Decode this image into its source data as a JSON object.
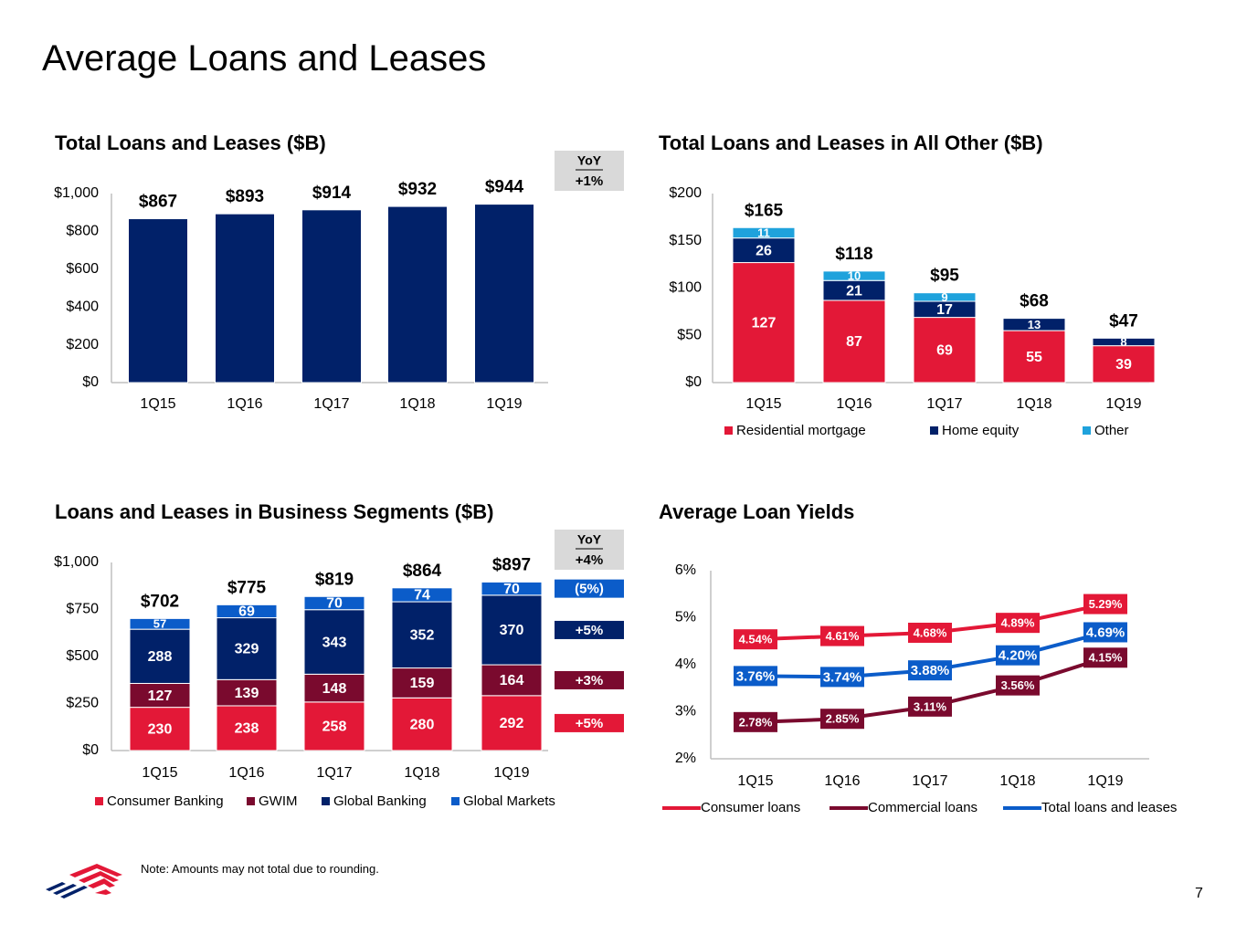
{
  "page": {
    "title": "Average Loans and Leases",
    "note": "Note: Amounts may not total due to rounding.",
    "page_number": "7"
  },
  "colors": {
    "navy": "#012169",
    "red": "#e31837",
    "maroon": "#7a0a2e",
    "light_blue": "#1fa2dc",
    "mid_blue": "#0b5cc9",
    "gray": "#d9d9d9"
  },
  "chart_data": [
    {
      "id": "total",
      "type": "bar",
      "title": "Total Loans and Leases ($B)",
      "categories": [
        "1Q15",
        "1Q16",
        "1Q17",
        "1Q18",
        "1Q19"
      ],
      "series": [
        {
          "name": "Total",
          "values": [
            867,
            893,
            914,
            932,
            944
          ],
          "color": "#012169"
        }
      ],
      "totals": [
        "$867",
        "$893",
        "$914",
        "$932",
        "$944"
      ],
      "yticks": [
        "$0",
        "$200",
        "$400",
        "$600",
        "$800",
        "$1,000"
      ],
      "ylim": [
        0,
        1000
      ],
      "yoy": {
        "header": "YoY",
        "total": "+1%"
      }
    },
    {
      "id": "allother",
      "type": "bar",
      "stacked": true,
      "title": "Total Loans and Leases in All Other ($B)",
      "categories": [
        "1Q15",
        "1Q16",
        "1Q17",
        "1Q18",
        "1Q19"
      ],
      "series": [
        {
          "name": "Residential mortgage",
          "values": [
            127,
            87,
            69,
            55,
            39
          ],
          "color": "#e31837"
        },
        {
          "name": "Home equity",
          "values": [
            26,
            21,
            17,
            13,
            8
          ],
          "color": "#012169"
        },
        {
          "name": "Other",
          "values": [
            11,
            10,
            9,
            0,
            0
          ],
          "color": "#1fa2dc"
        }
      ],
      "totals": [
        "$165",
        "$118",
        "$95",
        "$68",
        "$47"
      ],
      "yticks": [
        "$0",
        "$50",
        "$100",
        "$150",
        "$200"
      ],
      "ylim": [
        0,
        200
      ],
      "legend": "bottom"
    },
    {
      "id": "segments",
      "type": "bar",
      "stacked": true,
      "title": "Loans and Leases in Business Segments ($B)",
      "categories": [
        "1Q15",
        "1Q16",
        "1Q17",
        "1Q18",
        "1Q19"
      ],
      "series": [
        {
          "name": "Consumer Banking",
          "values": [
            230,
            238,
            258,
            280,
            292
          ],
          "color": "#e31837",
          "yoy": "+5%"
        },
        {
          "name": "GWIM",
          "values": [
            127,
            139,
            148,
            159,
            164
          ],
          "color": "#7a0a2e",
          "yoy": "+3%"
        },
        {
          "name": "Global Banking",
          "values": [
            288,
            329,
            343,
            352,
            370
          ],
          "color": "#012169",
          "yoy": "+5%"
        },
        {
          "name": "Global Markets",
          "values": [
            57,
            69,
            70,
            74,
            70
          ],
          "color": "#0b5cc9",
          "yoy": "(5%)"
        }
      ],
      "totals": [
        "$702",
        "$775",
        "$819",
        "$864",
        "$897"
      ],
      "yticks": [
        "$0",
        "$250",
        "$500",
        "$750",
        "$1,000"
      ],
      "ylim": [
        0,
        1000
      ],
      "yoy": {
        "header": "YoY",
        "total": "+4%"
      },
      "legend": "bottom"
    },
    {
      "id": "yields",
      "type": "line",
      "title": "Average Loan Yields",
      "categories": [
        "1Q15",
        "1Q16",
        "1Q17",
        "1Q18",
        "1Q19"
      ],
      "series": [
        {
          "name": "Consumer loans",
          "values": [
            4.54,
            4.61,
            4.68,
            4.89,
            5.29
          ],
          "labels": [
            "4.54%",
            "4.61%",
            "4.68%",
            "4.89%",
            "5.29%"
          ],
          "color": "#e31837"
        },
        {
          "name": "Commercial loans",
          "values": [
            2.78,
            2.85,
            3.11,
            3.56,
            4.15
          ],
          "labels": [
            "2.78%",
            "2.85%",
            "3.11%",
            "3.56%",
            "4.15%"
          ],
          "color": "#7a0a2e"
        },
        {
          "name": "Total loans and leases",
          "values": [
            3.76,
            3.74,
            3.88,
            4.2,
            4.69
          ],
          "labels": [
            "3.76%",
            "3.74%",
            "3.88%",
            "4.20%",
            "4.69%"
          ],
          "color": "#0b5cc9"
        }
      ],
      "yticks": [
        "2%",
        "3%",
        "4%",
        "5%",
        "6%"
      ],
      "ylim": [
        2,
        6
      ],
      "legend": "bottom"
    }
  ]
}
